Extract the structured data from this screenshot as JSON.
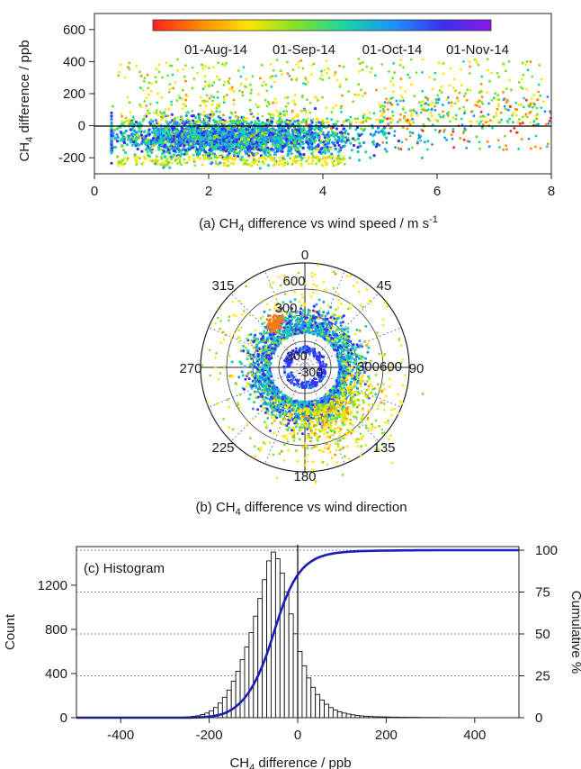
{
  "chart_data": [
    {
      "panel": "a",
      "type": "scatter",
      "caption": "(a) CH4 difference vs wind speed / m s-1",
      "caption_parts": {
        "pre": "(a) CH",
        "sub": "4",
        "mid": " difference vs wind speed / m s",
        "sup": "-1"
      },
      "ylabel_parts": {
        "pre": "CH",
        "sub": "4",
        "post": " difference / ppb"
      },
      "xlim": [
        0,
        8
      ],
      "ylim": [
        -300,
        700
      ],
      "xticks": [
        "0",
        "2",
        "4",
        "6",
        "8"
      ],
      "yticks": [
        "-200",
        "0",
        "200",
        "400",
        "600"
      ],
      "colorbar": {
        "ticks": [
          "01-Aug-14",
          "01-Sep-14",
          "01-Oct-14",
          "01-Nov-14"
        ],
        "colors": [
          "#ff2020",
          "#ff8c00",
          "#ffe600",
          "#7ee12a",
          "#16d6a6",
          "#1e90ff",
          "#3a2ff0",
          "#8a18e8"
        ]
      },
      "series_summary": {
        "core_speed_range": [
          0.3,
          6.5
        ],
        "core_diff_range": [
          -220,
          60
        ],
        "tail_speed_range": [
          0.4,
          8.0
        ],
        "tail_diff_range": [
          -260,
          440
        ]
      }
    },
    {
      "panel": "b",
      "type": "polar_scatter",
      "caption": "(b) CH4 difference vs wind direction",
      "caption_parts": {
        "pre": "(b) CH",
        "sub": "4",
        "post": " difference vs wind direction"
      },
      "angle_ticks": [
        "0",
        "45",
        "90",
        "135",
        "180",
        "225",
        "270",
        "315"
      ],
      "radial_ticks": [
        "300",
        "600",
        "-300",
        "0"
      ],
      "inner_labels": [
        "300",
        "600",
        "300600"
      ],
      "core_diff_range": [
        -300,
        0
      ],
      "notes": "points plotted by wind direction (degrees, clockwise from north) with radius = CH4 difference offset"
    },
    {
      "panel": "c",
      "type": "bar",
      "subtype": "histogram_with_cumulative",
      "title": "(c) Histogram",
      "xlabel_parts": {
        "pre": "CH",
        "sub": "4",
        "post": " difference / ppb"
      },
      "ylabel": "Count",
      "y2label": "Cumulative %",
      "xlim": [
        -500,
        500
      ],
      "ylim": [
        0,
        1550
      ],
      "y2lim": [
        0,
        100
      ],
      "xticks": [
        "-400",
        "-200",
        "0",
        "200",
        "400"
      ],
      "yticks": [
        "0",
        "400",
        "800",
        "1200"
      ],
      "y2ticks": [
        "0",
        "25",
        "50",
        "75",
        "100"
      ],
      "bin_width": 10,
      "bin_centers": [
        -255,
        -245,
        -235,
        -225,
        -215,
        -205,
        -195,
        -185,
        -175,
        -165,
        -155,
        -145,
        -135,
        -125,
        -115,
        -105,
        -95,
        -85,
        -75,
        -65,
        -55,
        -45,
        -35,
        -25,
        -15,
        -5,
        5,
        15,
        25,
        35,
        45,
        55,
        65,
        75,
        85,
        95,
        105,
        115,
        125,
        135,
        145,
        155,
        165,
        175,
        185,
        195,
        205,
        215,
        225,
        235,
        245,
        255,
        265,
        275,
        285,
        295,
        305,
        315,
        325,
        335
      ],
      "counts": [
        5,
        8,
        12,
        18,
        28,
        42,
        62,
        92,
        132,
        185,
        250,
        330,
        420,
        525,
        640,
        770,
        920,
        1080,
        1250,
        1420,
        1500,
        1440,
        1310,
        1140,
        940,
        760,
        600,
        470,
        360,
        275,
        210,
        160,
        122,
        92,
        70,
        54,
        42,
        33,
        26,
        20,
        16,
        13,
        11,
        9,
        8,
        7,
        6,
        5,
        5,
        4,
        4,
        3,
        3,
        3,
        2,
        2,
        2,
        2,
        1,
        1
      ],
      "cumulative_line_color": "#1c1cb8"
    }
  ]
}
